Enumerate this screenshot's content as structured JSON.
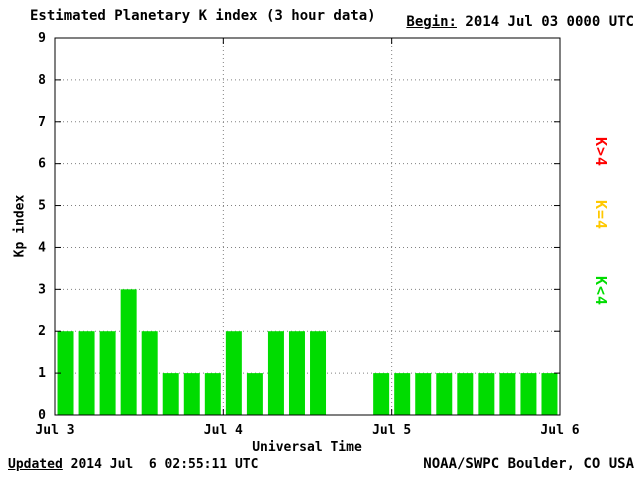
{
  "header": {
    "title": "Estimated Planetary K index (3 hour data)",
    "begin_label": "Begin:",
    "begin_value": " 2014 Jul 03 0000 UTC"
  },
  "footer": {
    "updated_label": "Updated",
    "updated_value": " 2014 Jul  6 02:55:11 UTC",
    "credit": "NOAA/SWPC Boulder, CO USA"
  },
  "legend": [
    {
      "label": "K>4",
      "color": "#FF0000"
    },
    {
      "label": "K=4",
      "color": "#FFC800"
    },
    {
      "label": "K<4",
      "color": "#00DC00"
    }
  ],
  "chart_data": {
    "type": "bar",
    "title": "Estimated Planetary K index (3 hour data)",
    "xlabel": "Universal Time",
    "ylabel": "Kp index",
    "ylim": [
      0,
      9
    ],
    "y_ticks": [
      "0",
      "1",
      "2",
      "3",
      "4",
      "5",
      "6",
      "7",
      "8",
      "9"
    ],
    "x_tick_labels": [
      "Jul 3",
      "Jul 4",
      "Jul 5",
      "Jul 6"
    ],
    "interval_hours": 3,
    "bars_per_day": 8,
    "values": [
      2,
      2,
      2,
      3,
      2,
      1,
      1,
      1,
      2,
      1,
      2,
      2,
      2,
      0,
      0,
      1,
      1,
      1,
      1,
      1,
      1,
      1,
      1,
      1
    ],
    "colors": {
      "below4": "#00DC00",
      "equal4": "#FFC800",
      "above4": "#FF0000"
    },
    "grid": true,
    "legend_position": "right",
    "begin": "2014 Jul 03 0000 UTC",
    "updated": "2014 Jul 6 02:55:11 UTC"
  }
}
